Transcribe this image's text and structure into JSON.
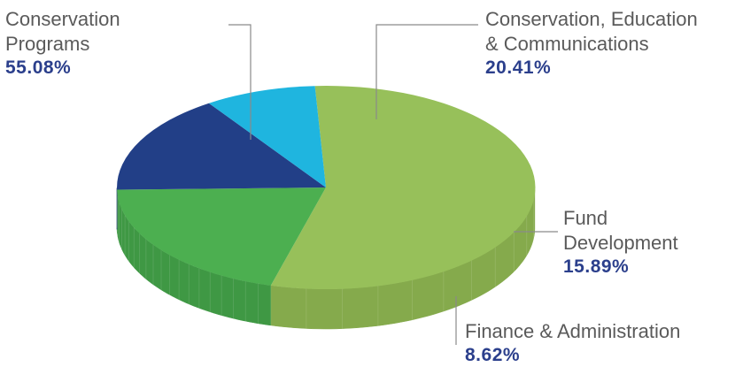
{
  "chart_data": {
    "type": "pie",
    "style": "3d",
    "title": "",
    "pct_color": "#2b3f8c",
    "slices": [
      {
        "label_lines": [
          "Conservation",
          "Programs"
        ],
        "value": 55.08,
        "value_text": "55.08%",
        "color": "#97c05a",
        "side_color": "#85aa4c"
      },
      {
        "label_lines": [
          "Conservation, Education",
          "& Communications"
        ],
        "value": 20.41,
        "value_text": "20.41%",
        "color": "#4caf50",
        "side_color": "#3f9844"
      },
      {
        "label_lines": [
          "Fund",
          "Development"
        ],
        "value": 15.89,
        "value_text": "15.89%",
        "color": "#223f87",
        "side_color": "#1b3270"
      },
      {
        "label_lines": [
          "Finance & Administration"
        ],
        "value": 8.62,
        "value_text": "8.62%",
        "color": "#1fb5df",
        "side_color": "#1899c0"
      }
    ]
  }
}
